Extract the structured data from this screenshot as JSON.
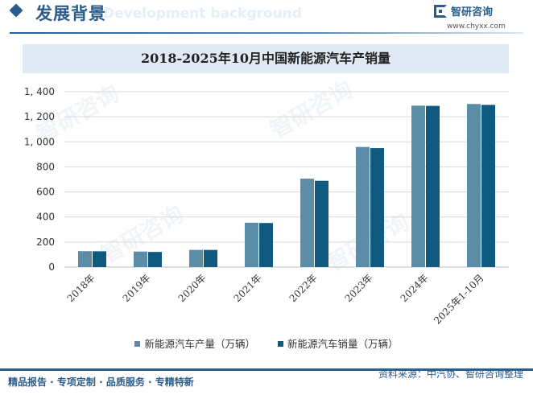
{
  "header": {
    "title": "发展背景",
    "ghost": "Development background"
  },
  "logo": {
    "name": "智研咨询",
    "url": "www.chyxx.com"
  },
  "watermark": "智研咨询",
  "footer": {
    "left": "精品报告 · 专项定制 · 品质服务 · 专精特新",
    "source": "资料来源：中汽协、智研咨询整理"
  },
  "colors": {
    "production": "#5b8da8",
    "sales": "#105a80",
    "accent": "#2b5d8c",
    "grid": "#d9d9d9"
  },
  "chart_data": {
    "type": "bar",
    "title": "2018-2025年10月中国新能源汽车产销量",
    "categories": [
      "2018年",
      "2019年",
      "2020年",
      "2021年",
      "2022年",
      "2023年",
      "2024年",
      "2025年1-10月"
    ],
    "series": [
      {
        "name": "新能源汽车产量（万辆）",
        "values": [
          127,
          124,
          137,
          354,
          706,
          959,
          1289,
          1302
        ]
      },
      {
        "name": "新能源汽车销量（万辆）",
        "values": [
          126,
          121,
          137,
          352,
          689,
          950,
          1287,
          1295
        ]
      }
    ],
    "ylim": [
      0,
      1400
    ],
    "yticks": [
      0,
      200,
      400,
      600,
      800,
      1000,
      1200,
      1400
    ],
    "ytick_labels": [
      "0",
      "200",
      "400",
      "600",
      "800",
      "1, 000",
      "1, 200",
      "1, 400"
    ],
    "grid": true,
    "legend": "bottom"
  }
}
